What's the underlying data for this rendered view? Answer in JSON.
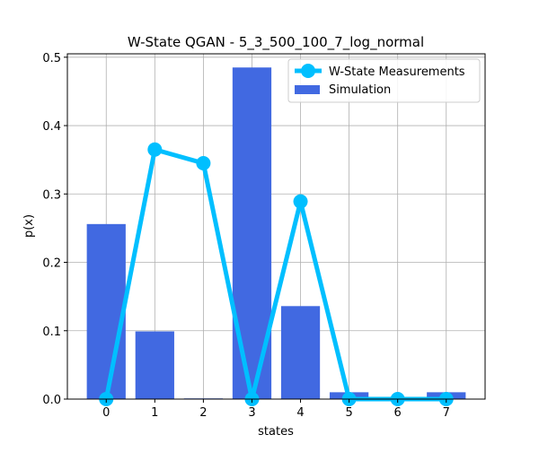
{
  "chart_data": {
    "type": "bar",
    "title": "W-State QGAN - 5_3_500_100_7_log_normal",
    "xlabel": "states",
    "ylabel": "p(x)",
    "categories": [
      0,
      1,
      2,
      3,
      4,
      5,
      6,
      7
    ],
    "x_ticks": [
      "0",
      "1",
      "2",
      "3",
      "4",
      "5",
      "6",
      "7"
    ],
    "ylim": [
      0,
      0.505
    ],
    "y_ticks": [
      "0.0",
      "0.1",
      "0.2",
      "0.3",
      "0.4",
      "0.5"
    ],
    "y_tick_values": [
      0.0,
      0.1,
      0.2,
      0.3,
      0.4,
      0.5
    ],
    "grid": true,
    "legend_position": "top-right",
    "series": [
      {
        "name": "Simulation",
        "kind": "bar",
        "color": "#4169E1",
        "values": [
          0.256,
          0.099,
          0.001,
          0.485,
          0.136,
          0.01,
          0.0,
          0.01
        ]
      },
      {
        "name": "W-State Measurements",
        "kind": "line",
        "color": "#00BFFF",
        "marker": "circle",
        "values": [
          0.0,
          0.365,
          0.345,
          0.0,
          0.289,
          0.0,
          0.0,
          0.0
        ]
      }
    ]
  }
}
